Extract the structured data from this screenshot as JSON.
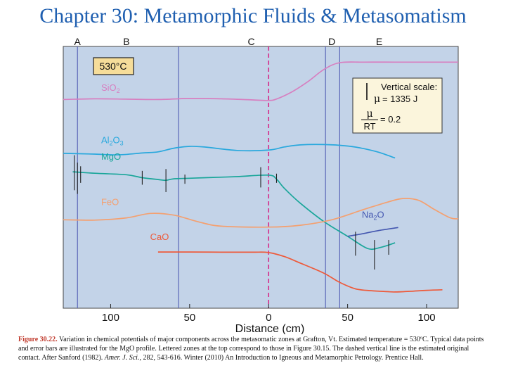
{
  "slide": {
    "title": "Chapter 30: Metamorphic Fluids & Metasomatism"
  },
  "chart_data": {
    "type": "line",
    "xlabel": "Distance (cm)",
    "x_ticks": [
      {
        "value": -100,
        "label": "100"
      },
      {
        "value": -50,
        "label": "50"
      },
      {
        "value": 0,
        "label": "0"
      },
      {
        "value": 50,
        "label": "50"
      },
      {
        "value": 100,
        "label": "100"
      }
    ],
    "xlim": [
      -130,
      120
    ],
    "temperature_label": "530°C",
    "zones": [
      {
        "label": "A",
        "x": -121
      },
      {
        "label": "B",
        "x": -90
      },
      {
        "label": "C",
        "x": -11
      },
      {
        "label": "D",
        "x": 40
      },
      {
        "label": "E",
        "x": 70
      }
    ],
    "zone_boundaries": [
      -121,
      -57,
      36,
      45
    ],
    "original_contact_x": 0,
    "vertical_scale": {
      "title": "Vertical scale:",
      "mu_line": "= 1335 J",
      "ratio_num": "μ",
      "ratio_den": "RT",
      "ratio_value": "= 0.2"
    },
    "series": [
      {
        "name": "SiO",
        "sub": "2",
        "color": "#d77fc0",
        "label_x": -106,
        "label_y": 2.8,
        "x": [
          -130,
          -110,
          -90,
          -70,
          -50,
          -30,
          -10,
          0,
          5,
          15,
          25,
          35,
          45,
          60,
          80,
          100,
          120
        ],
        "y": [
          2.32,
          2.36,
          2.34,
          2.32,
          2.38,
          2.36,
          2.3,
          2.27,
          2.35,
          2.75,
          3.3,
          3.95,
          4.32,
          4.35,
          4.35,
          4.35,
          4.35
        ]
      },
      {
        "name": "Al",
        "sub": "2",
        "name2": "O",
        "sub2": "3",
        "color": "#29a8dd",
        "label_x": -106,
        "label_y": -0.05,
        "x": [
          -130,
          -110,
          -95,
          -80,
          -70,
          -60,
          -50,
          -40,
          -20,
          0,
          10,
          20,
          35,
          50,
          60,
          70,
          80
        ],
        "y": [
          -0.6,
          -0.64,
          -0.68,
          -0.58,
          -0.52,
          -0.32,
          -0.22,
          -0.26,
          -0.44,
          -0.42,
          -0.25,
          -0.14,
          -0.12,
          -0.2,
          -0.34,
          -0.55,
          -0.85
        ]
      },
      {
        "name": "MgO",
        "color": "#1aa69a",
        "label_x": -106,
        "label_y": -0.95,
        "x": [
          -124,
          -110,
          -90,
          -80,
          -70,
          -65,
          -60,
          -50,
          -40,
          -20,
          0,
          5,
          10,
          20,
          35,
          50,
          60,
          65,
          70,
          75,
          80
        ],
        "y": [
          -1.6,
          -1.68,
          -1.76,
          -1.92,
          -2.02,
          -2.06,
          -1.98,
          -1.95,
          -1.92,
          -1.86,
          -1.78,
          -2.0,
          -2.5,
          -3.3,
          -4.3,
          -5.1,
          -5.65,
          -5.8,
          -5.72,
          -5.6,
          -5.45
        ]
      },
      {
        "name": "FeO",
        "color": "#f4a070",
        "label_x": -106,
        "label_y": -3.4,
        "x": [
          -130,
          -110,
          -90,
          -75,
          -60,
          -45,
          -30,
          0,
          20,
          40,
          60,
          75,
          85,
          95,
          105,
          115,
          120
        ],
        "y": [
          -4.2,
          -4.22,
          -4.1,
          -3.86,
          -3.95,
          -4.3,
          -4.55,
          -4.6,
          -4.5,
          -4.2,
          -3.65,
          -3.25,
          -3.05,
          -3.15,
          -3.65,
          -4.1,
          -4.15
        ]
      },
      {
        "name": "CaO",
        "color": "#ee5a3a",
        "label_x": -75,
        "label_y": -5.3,
        "x": [
          -70,
          -50,
          -30,
          -10,
          0,
          10,
          20,
          35,
          45,
          55,
          65,
          75,
          80,
          90,
          100,
          110
        ],
        "y": [
          -5.95,
          -5.95,
          -5.96,
          -5.96,
          -5.98,
          -6.2,
          -6.55,
          -7.1,
          -7.6,
          -7.95,
          -8.05,
          -8.1,
          -8.12,
          -8.08,
          -8.03,
          -8.0
        ]
      },
      {
        "name": "Na",
        "sub": "2",
        "name2": "O",
        "color": "#4457b0",
        "label_x": 59,
        "label_y": -4.1,
        "x": [
          50,
          60,
          70,
          82
        ],
        "y": [
          -5.1,
          -4.95,
          -4.78,
          -4.62
        ]
      }
    ],
    "mgo_error_bars": [
      {
        "x": -123,
        "y_top": -0.7,
        "y_bot": -2.6
      },
      {
        "x": -121,
        "y_top": -1.1,
        "y_bot": -2.8
      },
      {
        "x": -119,
        "y_top": -1.3,
        "y_bot": -2.2
      },
      {
        "x": -80,
        "y_top": -1.55,
        "y_bot": -2.3
      },
      {
        "x": -65,
        "y_top": -1.45,
        "y_bot": -2.7
      },
      {
        "x": -53,
        "y_top": -1.75,
        "y_bot": -2.25
      },
      {
        "x": -5,
        "y_top": -1.35,
        "y_bot": -2.45
      },
      {
        "x": 5,
        "y_top": -1.7,
        "y_bot": -2.2
      },
      {
        "x": 55,
        "y_top": -4.85,
        "y_bot": -6.15
      },
      {
        "x": 67,
        "y_top": -5.3,
        "y_bot": -6.9
      },
      {
        "x": 76,
        "y_top": -5.3,
        "y_bot": -6.1
      }
    ]
  },
  "caption": {
    "label": "Figure 30.22.",
    "text_1": " Variation in chemical potentials of major components across the metasomatic zones at Grafton, Vt. Estimated temperature = 530ºC. Typical data points and error bars are illustrated for the MgO profile. Lettered zones at the top correspond to those in Figure 30.15. The dashed vertical line is the estimated original contact. After Sanford (1982). ",
    "journal": "Amer. J. Sci.",
    "text_2": ", 282, 543-616. Winter (2010) An Introduction to Igneous and Metamorphic Petrology. Prentice Hall."
  }
}
